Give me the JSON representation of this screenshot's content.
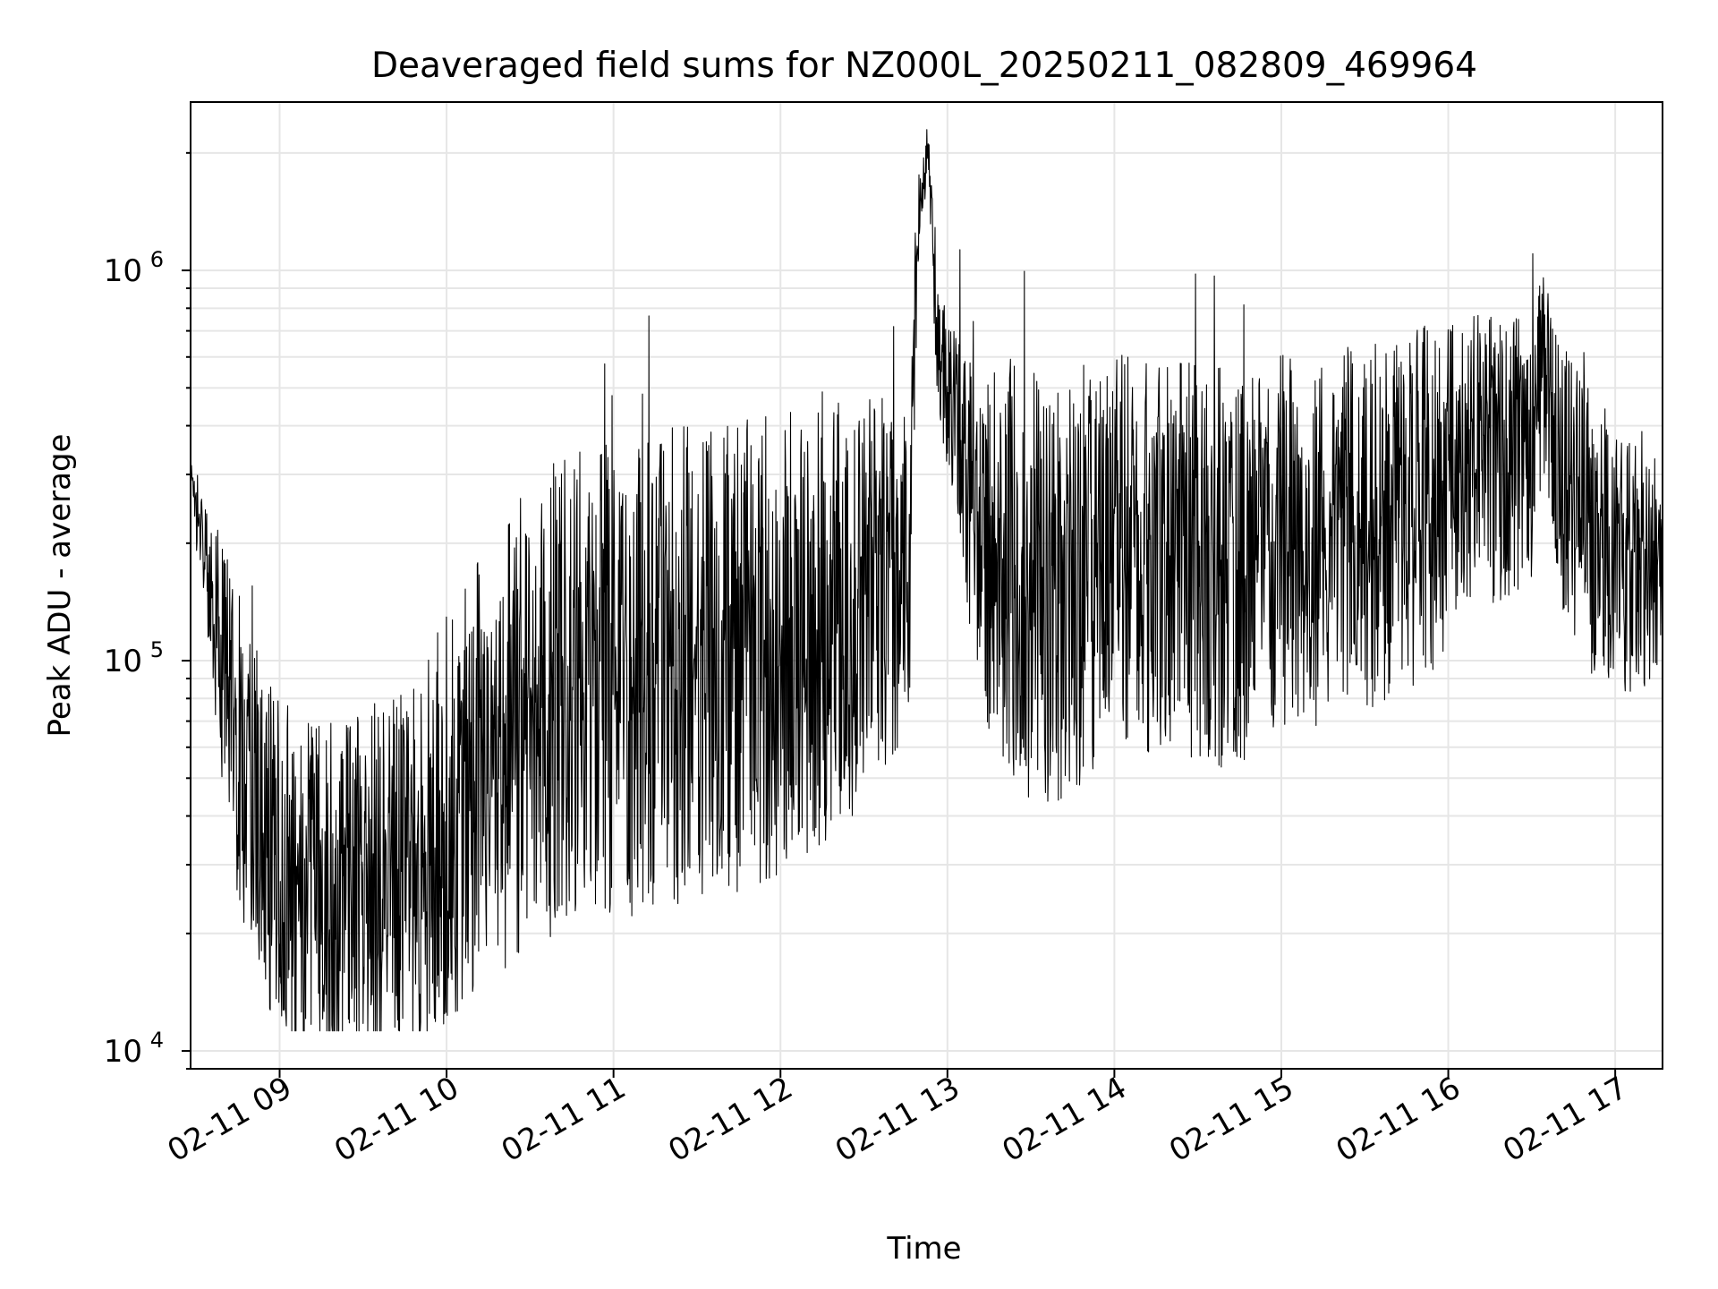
{
  "chart_data": {
    "type": "line",
    "title": "Deaveraged field sums for NZ000L_20250211_082809_469964",
    "xlabel": "Time",
    "ylabel": "Peak ADU - average",
    "x_ticks": [
      "02-11 09",
      "02-11 10",
      "02-11 11",
      "02-11 12",
      "02-11 13",
      "02-11 14",
      "02-11 15",
      "02-11 16",
      "02-11 17"
    ],
    "y_scale": "log",
    "y_ticks": [
      {
        "value": 10000,
        "base": "10",
        "exp": "4"
      },
      {
        "value": 100000,
        "base": "10",
        "exp": "5"
      },
      {
        "value": 1000000,
        "base": "10",
        "exp": "6"
      }
    ],
    "xlim": [
      "2025-02-11 08:28",
      "2025-02-11 17:17"
    ],
    "ylim": [
      9000,
      2700000
    ],
    "grid": true,
    "line_color": "#000000",
    "series": [
      {
        "x": [
          "2025-02-11 08:28",
          "2025-02-11 08:30",
          "2025-02-11 08:33",
          "2025-02-11 08:36",
          "2025-02-11 08:40",
          "2025-02-11 08:45",
          "2025-02-11 08:50",
          "2025-02-11 08:55",
          "2025-02-11 09:00",
          "2025-02-11 09:10",
          "2025-02-11 09:20",
          "2025-02-11 09:30",
          "2025-02-11 09:40",
          "2025-02-11 09:50",
          "2025-02-11 10:00",
          "2025-02-11 10:10",
          "2025-02-11 10:20",
          "2025-02-11 10:30",
          "2025-02-11 10:40",
          "2025-02-11 10:50",
          "2025-02-11 11:00",
          "2025-02-11 11:10",
          "2025-02-11 11:20",
          "2025-02-11 11:30",
          "2025-02-11 11:40",
          "2025-02-11 11:50",
          "2025-02-11 12:00",
          "2025-02-11 12:10",
          "2025-02-11 12:20",
          "2025-02-11 12:30",
          "2025-02-11 12:40",
          "2025-02-11 12:47",
          "2025-02-11 12:50",
          "2025-02-11 12:53",
          "2025-02-11 12:56",
          "2025-02-11 13:00",
          "2025-02-11 13:05",
          "2025-02-11 13:10",
          "2025-02-11 13:20",
          "2025-02-11 13:30",
          "2025-02-11 13:40",
          "2025-02-11 13:50",
          "2025-02-11 14:00",
          "2025-02-11 14:10",
          "2025-02-11 14:20",
          "2025-02-11 14:30",
          "2025-02-11 14:40",
          "2025-02-11 14:50",
          "2025-02-11 15:00",
          "2025-02-11 15:10",
          "2025-02-11 15:20",
          "2025-02-11 15:30",
          "2025-02-11 15:40",
          "2025-02-11 15:50",
          "2025-02-11 16:00",
          "2025-02-11 16:10",
          "2025-02-11 16:20",
          "2025-02-11 16:30",
          "2025-02-11 16:35",
          "2025-02-11 16:40",
          "2025-02-11 16:50",
          "2025-02-11 17:00",
          "2025-02-11 17:10",
          "2025-02-11 17:17"
        ],
        "y": [
          330000,
          240000,
          190000,
          150000,
          95000,
          60000,
          45000,
          35000,
          30000,
          27000,
          25000,
          26000,
          28000,
          30000,
          40000,
          50000,
          60000,
          70000,
          80000,
          85000,
          90000,
          90000,
          95000,
          100000,
          100000,
          105000,
          110000,
          120000,
          130000,
          140000,
          160000,
          180000,
          1500000,
          2000000,
          700000,
          450000,
          380000,
          200000,
          180000,
          160000,
          150000,
          170000,
          180000,
          185000,
          190000,
          180000,
          175000,
          180000,
          190000,
          200000,
          210000,
          220000,
          230000,
          240000,
          280000,
          320000,
          330000,
          350000,
          550000,
          300000,
          220000,
          180000,
          170000,
          180000
        ],
        "spread": [
          1.0,
          1.3,
          1.4,
          1.8,
          2.2,
          2.5,
          2.6,
          2.6,
          2.7,
          2.7,
          2.8,
          2.9,
          3.0,
          3.2,
          3.4,
          3.6,
          3.8,
          4.0,
          4.1,
          4.2,
          4.2,
          4.2,
          4.2,
          4.1,
          4.0,
          4.0,
          3.9,
          3.8,
          3.6,
          3.4,
          3.0,
          2.2,
          1.3,
          1.2,
          1.5,
          1.6,
          2.0,
          2.4,
          3.3,
          3.7,
          3.6,
          3.4,
          3.3,
          3.3,
          3.3,
          3.3,
          3.3,
          3.2,
          3.2,
          3.1,
          3.0,
          3.0,
          3.0,
          3.0,
          2.6,
          2.4,
          2.4,
          2.2,
          1.8,
          2.2,
          2.4,
          2.2,
          2.0,
          1.8
        ]
      }
    ]
  }
}
